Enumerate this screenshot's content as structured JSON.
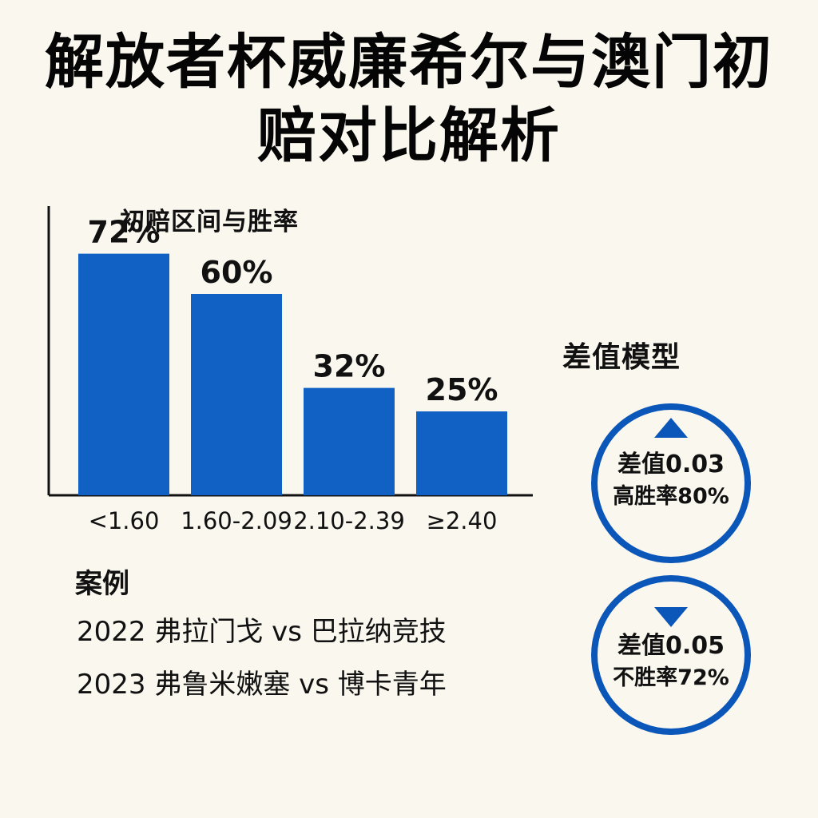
{
  "title": "解放者杯威廉希尔与澳门初赔对比解析",
  "colors": {
    "background": "#faf7ef",
    "accent": "#0b56b9",
    "bar": "#1161c4",
    "text": "#111111"
  },
  "chart_data": {
    "type": "bar",
    "title": "初赔区间与胜率",
    "categories": [
      "<1.60",
      "1.60-2.09",
      "2.10-2.39",
      "≥2.40"
    ],
    "values": [
      72,
      60,
      32,
      25
    ],
    "value_suffix": "%",
    "ylim": [
      0,
      100
    ],
    "grid": false,
    "legend": "none"
  },
  "cases": {
    "title": "案例",
    "items": [
      "2022 弗拉门戈 vs 巴拉纳竞技",
      "2023 弗鲁米嫩塞 vs 博卡青年"
    ]
  },
  "difference_model": {
    "title": "差值模型",
    "cards": [
      {
        "icon": "triangle-up-icon",
        "primary": "差值0.03",
        "secondary": "高胜率80%"
      },
      {
        "icon": "triangle-down-icon",
        "primary": "差值0.05",
        "secondary": "不胜率72%"
      }
    ]
  }
}
